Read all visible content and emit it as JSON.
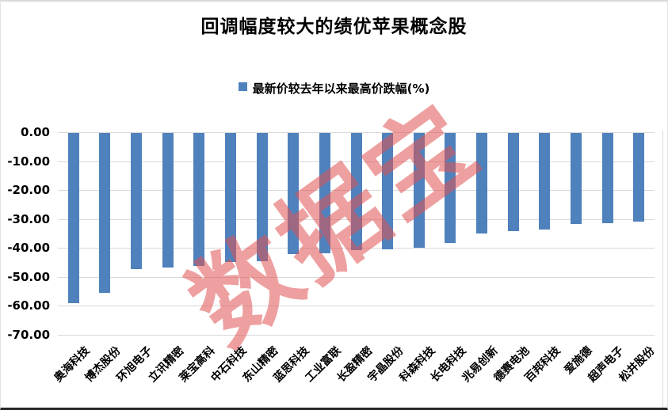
{
  "title": "回调幅度较大的绩优苹果概念股",
  "legend": {
    "label": "最新价较去年以来最高价跌幅(%)",
    "marker_color": "#4f81bd"
  },
  "watermark": {
    "text": "数据宝",
    "color": "rgba(224,82,82,0.55)"
  },
  "colors": {
    "bar": "#4f81bd",
    "gridline": "#d9d9d9",
    "text": "#000000"
  },
  "chart_data": {
    "type": "bar",
    "orientation": "vertical",
    "title": "回调幅度较大的绩优苹果概念股",
    "series_name": "最新价较去年以来最高价跌幅(%)",
    "categories": [
      "奥海科技",
      "博杰股份",
      "环旭电子",
      "立讯精密",
      "莱宝高科",
      "中石科技",
      "东山精密",
      "蓝思科技",
      "工业富联",
      "长盈精密",
      "宇晶股份",
      "科森科技",
      "长电科技",
      "兆易创新",
      "德赛电池",
      "百邦科技",
      "爱施德",
      "超声电子",
      "松井股份"
    ],
    "values": [
      -58.7,
      -55.3,
      -46.9,
      -46.4,
      -46.0,
      -44.7,
      -44.4,
      -41.8,
      -41.6,
      -40.4,
      -40.2,
      -39.6,
      -38.0,
      -34.6,
      -33.9,
      -33.3,
      -31.4,
      -31.3,
      -30.6
    ],
    "ylim": [
      -70,
      0
    ],
    "ytick_step": 10,
    "ytick_labels": [
      "0.00",
      "-10.00",
      "-20.00",
      "-30.00",
      "-40.00",
      "-50.00",
      "-60.00",
      "-70.00"
    ],
    "xlabel": "",
    "ylabel": "",
    "grid": true,
    "legend_position": "top-center",
    "xtick_rotation_deg": 45
  }
}
